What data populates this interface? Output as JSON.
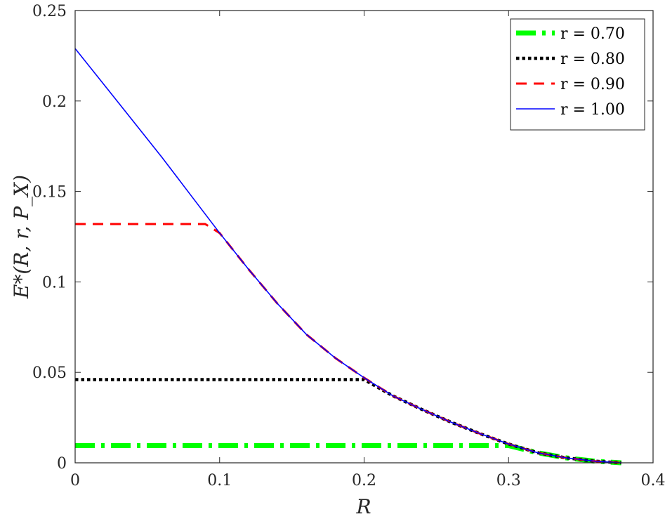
{
  "chart_data": {
    "type": "line",
    "xlabel": "R",
    "ylabel": "E*(R, r, P_X)",
    "xlim": [
      0,
      0.4
    ],
    "ylim": [
      0,
      0.25
    ],
    "xticks": [
      "0",
      "0.1",
      "0.2",
      "0.3",
      "0.4"
    ],
    "yticks": [
      "0",
      "0.05",
      "0.1",
      "0.15",
      "0.2",
      "0.25"
    ],
    "grid": false,
    "legend_position": "top-right",
    "series": [
      {
        "name": "r = 0.70",
        "color": "#00ff00",
        "style": "dash-dot",
        "x": [
          0,
          0.05,
          0.1,
          0.15,
          0.2,
          0.25,
          0.29,
          0.3,
          0.32,
          0.34,
          0.36,
          0.378
        ],
        "y": [
          0.0095,
          0.0095,
          0.0095,
          0.0095,
          0.0095,
          0.0095,
          0.0095,
          0.0095,
          0.0056,
          0.0027,
          0.0009,
          0.0
        ]
      },
      {
        "name": "r = 0.80",
        "color": "#000000",
        "style": "dotted",
        "x": [
          0,
          0.05,
          0.1,
          0.15,
          0.2,
          0.22,
          0.24,
          0.26,
          0.28,
          0.3,
          0.32,
          0.34,
          0.36,
          0.378
        ],
        "y": [
          0.046,
          0.046,
          0.046,
          0.046,
          0.046,
          0.037,
          0.0295,
          0.0225,
          0.0162,
          0.0104,
          0.0056,
          0.0027,
          0.0009,
          0.0
        ]
      },
      {
        "name": "r = 0.90",
        "color": "#ff0000",
        "style": "dashed",
        "x": [
          0,
          0.05,
          0.09,
          0.1,
          0.12,
          0.14,
          0.16,
          0.18,
          0.2,
          0.22,
          0.24,
          0.26,
          0.28,
          0.3,
          0.32,
          0.34,
          0.36,
          0.378
        ],
        "y": [
          0.132,
          0.132,
          0.132,
          0.127,
          0.107,
          0.088,
          0.071,
          0.058,
          0.047,
          0.037,
          0.0295,
          0.0225,
          0.0162,
          0.0104,
          0.0056,
          0.0027,
          0.0009,
          0.0
        ]
      },
      {
        "name": "r = 1.00",
        "color": "#0000ff",
        "style": "solid",
        "x": [
          0,
          0.02,
          0.04,
          0.06,
          0.08,
          0.1,
          0.12,
          0.14,
          0.16,
          0.18,
          0.2,
          0.22,
          0.24,
          0.26,
          0.28,
          0.3,
          0.32,
          0.34,
          0.36,
          0.378
        ],
        "y": [
          0.229,
          0.209,
          0.189,
          0.169,
          0.148,
          0.127,
          0.107,
          0.088,
          0.071,
          0.058,
          0.047,
          0.037,
          0.0295,
          0.0225,
          0.0162,
          0.0104,
          0.0056,
          0.0027,
          0.0009,
          0.0
        ]
      }
    ]
  }
}
